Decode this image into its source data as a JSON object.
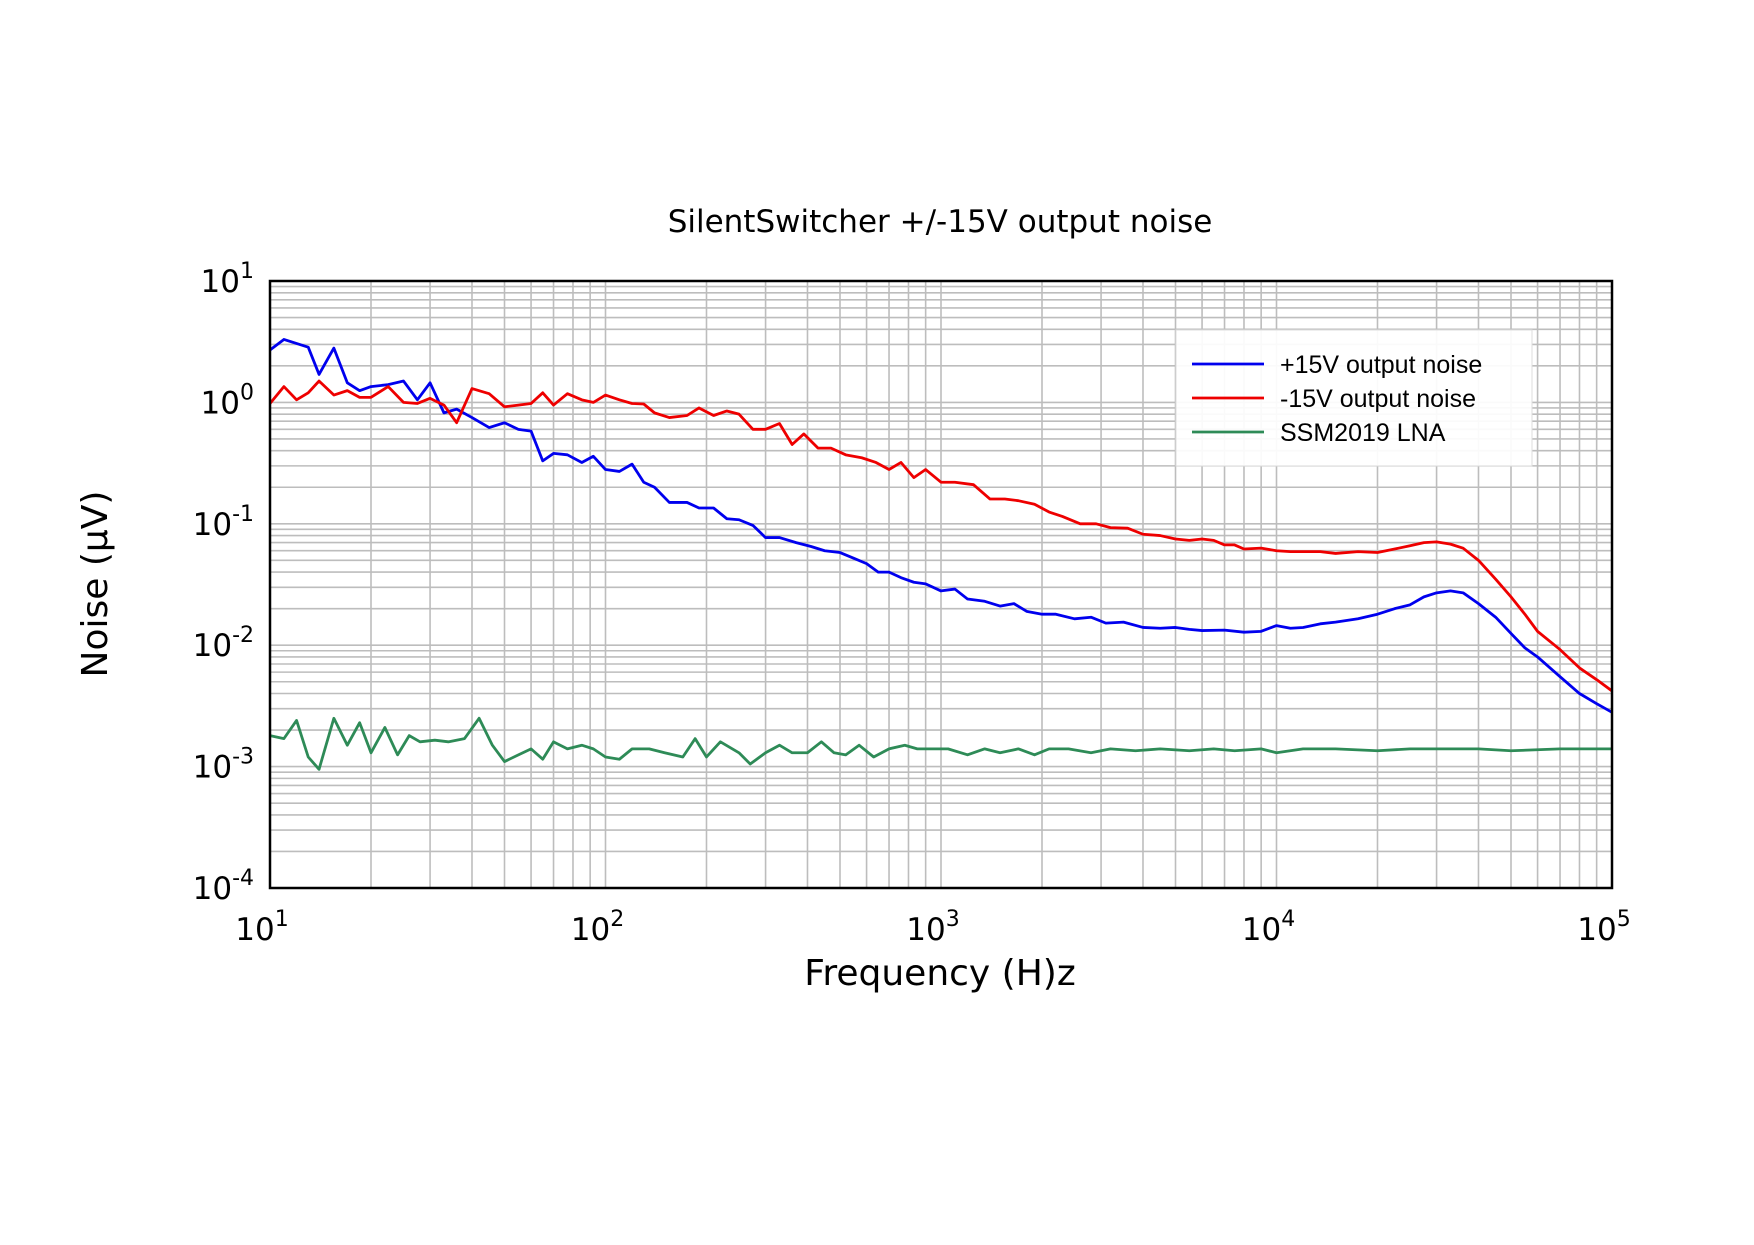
{
  "chart_data": {
    "type": "line",
    "title": "SilentSwitcher +/-15V output noise",
    "xlabel": "Frequency (H)z",
    "ylabel": "Noise (μV)",
    "xscale": "log",
    "yscale": "log",
    "xlim": [
      10,
      100000
    ],
    "ylim": [
      0.0001,
      10
    ],
    "x_ticks": [
      {
        "base": "10",
        "exp": "1",
        "value": 10
      },
      {
        "base": "10",
        "exp": "2",
        "value": 100
      },
      {
        "base": "10",
        "exp": "3",
        "value": 1000
      },
      {
        "base": "10",
        "exp": "4",
        "value": 10000
      },
      {
        "base": "10",
        "exp": "5",
        "value": 100000
      }
    ],
    "y_ticks": [
      {
        "base": "10",
        "exp": "1",
        "value": 10
      },
      {
        "base": "10",
        "exp": "0",
        "value": 1
      },
      {
        "base": "10",
        "exp": "-1",
        "value": 0.1
      },
      {
        "base": "10",
        "exp": "-2",
        "value": 0.01
      },
      {
        "base": "10",
        "exp": "-3",
        "value": 0.001
      },
      {
        "base": "10",
        "exp": "-4",
        "value": 0.0001
      }
    ],
    "grid": true,
    "legend_position": "top-right",
    "series": [
      {
        "name": "+15V output noise",
        "color": "#0000ee",
        "points": [
          [
            10,
            2.7
          ],
          [
            11,
            3.3
          ],
          [
            13,
            2.85
          ],
          [
            14,
            1.7
          ],
          [
            15.5,
            2.8
          ],
          [
            17,
            1.45
          ],
          [
            18.5,
            1.25
          ],
          [
            20,
            1.35
          ],
          [
            22.5,
            1.4
          ],
          [
            25,
            1.5
          ],
          [
            27.5,
            1.05
          ],
          [
            30,
            1.45
          ],
          [
            33,
            0.82
          ],
          [
            36,
            0.88
          ],
          [
            40,
            0.75
          ],
          [
            45,
            0.62
          ],
          [
            50,
            0.68
          ],
          [
            55,
            0.6
          ],
          [
            60,
            0.58
          ],
          [
            65,
            0.33
          ],
          [
            70,
            0.38
          ],
          [
            77,
            0.37
          ],
          [
            85,
            0.32
          ],
          [
            92,
            0.36
          ],
          [
            100,
            0.28
          ],
          [
            110,
            0.27
          ],
          [
            120,
            0.31
          ],
          [
            130,
            0.22
          ],
          [
            140,
            0.2
          ],
          [
            155,
            0.15
          ],
          [
            175,
            0.15
          ],
          [
            190,
            0.135
          ],
          [
            210,
            0.135
          ],
          [
            230,
            0.11
          ],
          [
            250,
            0.108
          ],
          [
            275,
            0.097
          ],
          [
            300,
            0.077
          ],
          [
            330,
            0.077
          ],
          [
            370,
            0.07
          ],
          [
            410,
            0.065
          ],
          [
            450,
            0.06
          ],
          [
            500,
            0.058
          ],
          [
            550,
            0.052
          ],
          [
            600,
            0.047
          ],
          [
            650,
            0.04
          ],
          [
            700,
            0.04
          ],
          [
            760,
            0.036
          ],
          [
            830,
            0.033
          ],
          [
            900,
            0.032
          ],
          [
            1000,
            0.028
          ],
          [
            1100,
            0.029
          ],
          [
            1200,
            0.024
          ],
          [
            1350,
            0.023
          ],
          [
            1500,
            0.021
          ],
          [
            1650,
            0.022
          ],
          [
            1800,
            0.019
          ],
          [
            2000,
            0.018
          ],
          [
            2200,
            0.018
          ],
          [
            2500,
            0.0165
          ],
          [
            2800,
            0.017
          ],
          [
            3100,
            0.0152
          ],
          [
            3500,
            0.0155
          ],
          [
            4000,
            0.014
          ],
          [
            4500,
            0.0138
          ],
          [
            5000,
            0.014
          ],
          [
            5500,
            0.0135
          ],
          [
            6000,
            0.0132
          ],
          [
            7000,
            0.0133
          ],
          [
            8000,
            0.0128
          ],
          [
            9000,
            0.013
          ],
          [
            10000,
            0.0145
          ],
          [
            11000,
            0.0138
          ],
          [
            12000,
            0.014
          ],
          [
            13500,
            0.015
          ],
          [
            15000,
            0.0155
          ],
          [
            17500,
            0.0165
          ],
          [
            20000,
            0.018
          ],
          [
            22500,
            0.02
          ],
          [
            25000,
            0.0215
          ],
          [
            27500,
            0.025
          ],
          [
            30000,
            0.027
          ],
          [
            33000,
            0.028
          ],
          [
            36000,
            0.027
          ],
          [
            40000,
            0.022
          ],
          [
            45000,
            0.017
          ],
          [
            50000,
            0.0125
          ],
          [
            55000,
            0.0095
          ],
          [
            60000,
            0.008
          ],
          [
            70000,
            0.0055
          ],
          [
            80000,
            0.004
          ],
          [
            90000,
            0.0033
          ],
          [
            100000,
            0.0028
          ]
        ]
      },
      {
        "name": "-15V output noise",
        "color": "#ee0000",
        "points": [
          [
            10,
            0.98
          ],
          [
            11,
            1.35
          ],
          [
            12,
            1.05
          ],
          [
            13,
            1.2
          ],
          [
            14,
            1.5
          ],
          [
            15.5,
            1.15
          ],
          [
            17,
            1.25
          ],
          [
            18.5,
            1.1
          ],
          [
            20,
            1.1
          ],
          [
            22.5,
            1.35
          ],
          [
            25,
            1.0
          ],
          [
            27.5,
            0.98
          ],
          [
            30,
            1.08
          ],
          [
            33,
            0.95
          ],
          [
            36,
            0.68
          ],
          [
            40,
            1.3
          ],
          [
            45,
            1.18
          ],
          [
            50,
            0.92
          ],
          [
            55,
            0.95
          ],
          [
            60,
            0.98
          ],
          [
            65,
            1.2
          ],
          [
            70,
            0.95
          ],
          [
            77,
            1.18
          ],
          [
            85,
            1.05
          ],
          [
            92,
            1.0
          ],
          [
            100,
            1.15
          ],
          [
            110,
            1.05
          ],
          [
            120,
            0.98
          ],
          [
            130,
            0.97
          ],
          [
            140,
            0.82
          ],
          [
            155,
            0.75
          ],
          [
            175,
            0.78
          ],
          [
            190,
            0.9
          ],
          [
            210,
            0.78
          ],
          [
            230,
            0.85
          ],
          [
            250,
            0.8
          ],
          [
            275,
            0.6
          ],
          [
            300,
            0.6
          ],
          [
            330,
            0.67
          ],
          [
            360,
            0.45
          ],
          [
            390,
            0.55
          ],
          [
            430,
            0.42
          ],
          [
            470,
            0.42
          ],
          [
            520,
            0.37
          ],
          [
            580,
            0.35
          ],
          [
            640,
            0.32
          ],
          [
            700,
            0.28
          ],
          [
            760,
            0.32
          ],
          [
            830,
            0.24
          ],
          [
            900,
            0.28
          ],
          [
            1000,
            0.22
          ],
          [
            1100,
            0.22
          ],
          [
            1250,
            0.21
          ],
          [
            1400,
            0.16
          ],
          [
            1550,
            0.16
          ],
          [
            1700,
            0.155
          ],
          [
            1900,
            0.145
          ],
          [
            2100,
            0.125
          ],
          [
            2300,
            0.115
          ],
          [
            2600,
            0.1
          ],
          [
            2900,
            0.1
          ],
          [
            3200,
            0.093
          ],
          [
            3600,
            0.092
          ],
          [
            4000,
            0.082
          ],
          [
            4500,
            0.08
          ],
          [
            5000,
            0.075
          ],
          [
            5500,
            0.073
          ],
          [
            6000,
            0.075
          ],
          [
            6500,
            0.073
          ],
          [
            7000,
            0.067
          ],
          [
            7500,
            0.067
          ],
          [
            8000,
            0.062
          ],
          [
            9000,
            0.063
          ],
          [
            10000,
            0.06
          ],
          [
            11000,
            0.059
          ],
          [
            12000,
            0.059
          ],
          [
            13500,
            0.059
          ],
          [
            15000,
            0.057
          ],
          [
            17500,
            0.059
          ],
          [
            20000,
            0.058
          ],
          [
            22500,
            0.062
          ],
          [
            25000,
            0.066
          ],
          [
            27500,
            0.07
          ],
          [
            30000,
            0.071
          ],
          [
            33000,
            0.068
          ],
          [
            36000,
            0.063
          ],
          [
            40000,
            0.05
          ],
          [
            45000,
            0.035
          ],
          [
            50000,
            0.025
          ],
          [
            55000,
            0.018
          ],
          [
            60000,
            0.013
          ],
          [
            70000,
            0.0092
          ],
          [
            80000,
            0.0065
          ],
          [
            90000,
            0.0052
          ],
          [
            100000,
            0.0042
          ]
        ]
      },
      {
        "name": "SSM2019 LNA",
        "color": "#2e8b57",
        "points": [
          [
            10,
            0.0018
          ],
          [
            11,
            0.0017
          ],
          [
            12,
            0.0024
          ],
          [
            13,
            0.0012
          ],
          [
            14,
            0.00095
          ],
          [
            15.5,
            0.0025
          ],
          [
            17,
            0.0015
          ],
          [
            18.5,
            0.0023
          ],
          [
            20,
            0.0013
          ],
          [
            22,
            0.0021
          ],
          [
            24,
            0.00125
          ],
          [
            26,
            0.0018
          ],
          [
            28,
            0.0016
          ],
          [
            31,
            0.00165
          ],
          [
            34,
            0.0016
          ],
          [
            38,
            0.0017
          ],
          [
            42,
            0.0025
          ],
          [
            46,
            0.0015
          ],
          [
            50,
            0.0011
          ],
          [
            55,
            0.00125
          ],
          [
            60,
            0.0014
          ],
          [
            65,
            0.00115
          ],
          [
            70,
            0.0016
          ],
          [
            77,
            0.0014
          ],
          [
            85,
            0.0015
          ],
          [
            92,
            0.0014
          ],
          [
            100,
            0.0012
          ],
          [
            110,
            0.00115
          ],
          [
            120,
            0.0014
          ],
          [
            135,
            0.0014
          ],
          [
            150,
            0.0013
          ],
          [
            170,
            0.0012
          ],
          [
            185,
            0.0017
          ],
          [
            200,
            0.0012
          ],
          [
            220,
            0.0016
          ],
          [
            250,
            0.0013
          ],
          [
            270,
            0.00105
          ],
          [
            300,
            0.0013
          ],
          [
            330,
            0.0015
          ],
          [
            360,
            0.0013
          ],
          [
            400,
            0.0013
          ],
          [
            440,
            0.0016
          ],
          [
            480,
            0.0013
          ],
          [
            520,
            0.00125
          ],
          [
            570,
            0.0015
          ],
          [
            630,
            0.0012
          ],
          [
            700,
            0.0014
          ],
          [
            780,
            0.0015
          ],
          [
            850,
            0.0014
          ],
          [
            950,
            0.0014
          ],
          [
            1050,
            0.0014
          ],
          [
            1200,
            0.00125
          ],
          [
            1350,
            0.0014
          ],
          [
            1500,
            0.0013
          ],
          [
            1700,
            0.0014
          ],
          [
            1900,
            0.00125
          ],
          [
            2100,
            0.0014
          ],
          [
            2400,
            0.0014
          ],
          [
            2800,
            0.0013
          ],
          [
            3200,
            0.0014
          ],
          [
            3800,
            0.00135
          ],
          [
            4500,
            0.0014
          ],
          [
            5500,
            0.00135
          ],
          [
            6500,
            0.0014
          ],
          [
            7500,
            0.00135
          ],
          [
            9000,
            0.0014
          ],
          [
            10000,
            0.0013
          ],
          [
            12000,
            0.0014
          ],
          [
            15000,
            0.0014
          ],
          [
            20000,
            0.00135
          ],
          [
            25000,
            0.0014
          ],
          [
            30000,
            0.0014
          ],
          [
            40000,
            0.0014
          ],
          [
            50000,
            0.00135
          ],
          [
            70000,
            0.0014
          ],
          [
            100000,
            0.0014
          ]
        ]
      }
    ]
  }
}
